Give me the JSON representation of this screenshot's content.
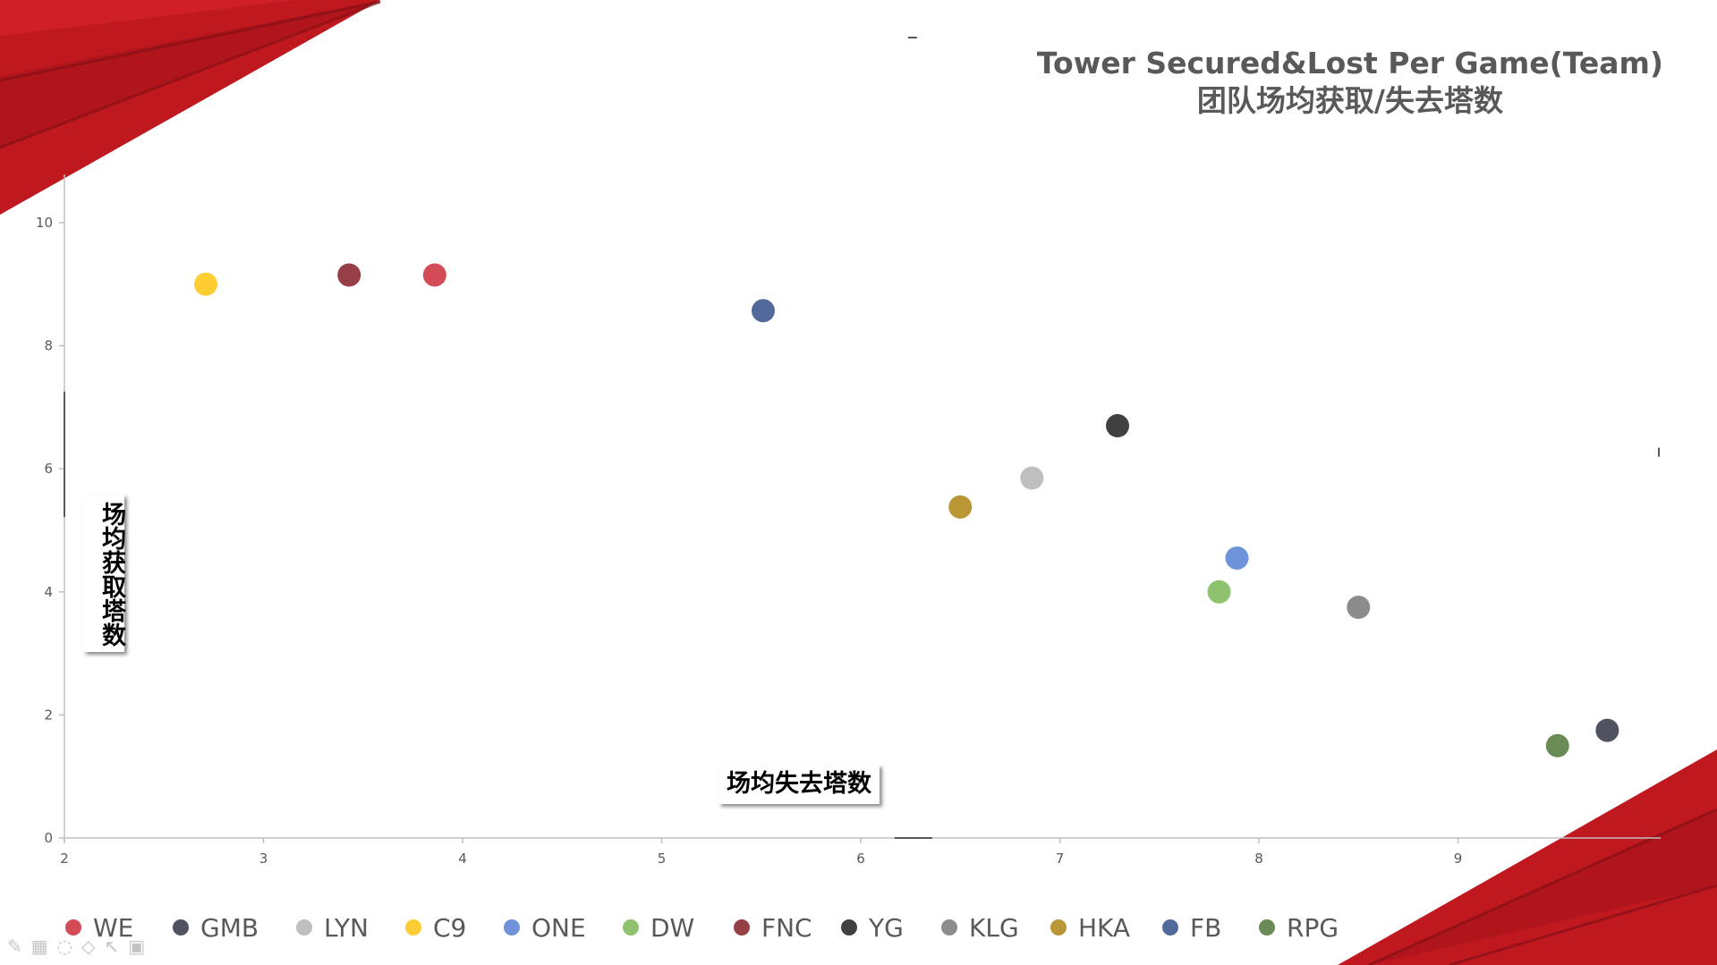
{
  "title": {
    "line1": "Tower Secured&Lost Per Game(Team)",
    "line2": "团队场均获取/失去塔数"
  },
  "axis_labels": {
    "y": "场均获取塔数",
    "x": "场均失去塔数"
  },
  "colors": {
    "accent_red": "#c0181f",
    "axis": "#595959",
    "tick_text": "#595959"
  },
  "toolbar_icons": [
    "pen-icon",
    "keyboard-icon",
    "eraser-icon",
    "highlighter-icon",
    "pointer-icon",
    "camera-icon"
  ],
  "chart_data": {
    "type": "scatter",
    "xlim": [
      2,
      10
    ],
    "ylim": [
      0,
      11
    ],
    "x_ticks": [
      "2",
      "3",
      "4",
      "5",
      "6",
      "7",
      "8",
      "9"
    ],
    "y_ticks": [
      "0",
      "2",
      "4",
      "6",
      "8",
      "10"
    ],
    "quadrant_lines": {
      "x": 6.26,
      "y": 6.27
    },
    "legend_position": "bottom",
    "series": [
      {
        "name": "WE",
        "color": "#d24b57",
        "x": 3.86,
        "y": 9.15
      },
      {
        "name": "GMB",
        "color": "#4f5261",
        "x": 9.75,
        "y": 1.75
      },
      {
        "name": "LYN",
        "color": "#bfbfbf",
        "x": 6.86,
        "y": 5.85
      },
      {
        "name": "C9",
        "color": "#fdcd33",
        "x": 2.71,
        "y": 9.0
      },
      {
        "name": "ONE",
        "color": "#6f93d9",
        "x": 7.89,
        "y": 4.55
      },
      {
        "name": "DW",
        "color": "#8ec26e",
        "x": 7.8,
        "y": 4.0
      },
      {
        "name": "FNC",
        "color": "#973f47",
        "x": 3.43,
        "y": 9.15
      },
      {
        "name": "YG",
        "color": "#404040",
        "x": 7.29,
        "y": 6.7
      },
      {
        "name": "KLG",
        "color": "#8c8c8c",
        "x": 8.5,
        "y": 3.75
      },
      {
        "name": "HKA",
        "color": "#b99636",
        "x": 6.5,
        "y": 5.38
      },
      {
        "name": "FB",
        "color": "#526a9b",
        "x": 5.51,
        "y": 8.57
      },
      {
        "name": "RPG",
        "color": "#6a8b55",
        "x": 9.5,
        "y": 1.5
      }
    ]
  }
}
